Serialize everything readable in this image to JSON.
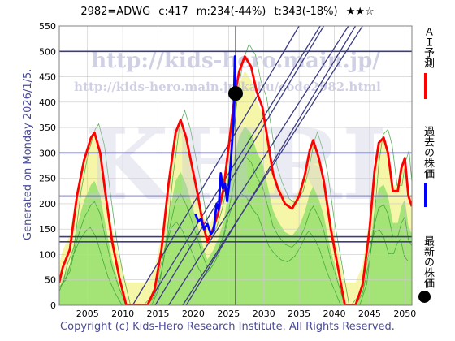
{
  "header": {
    "code": "2982=ADWG",
    "current": "c:417",
    "min": "m:234(-44%)",
    "target": "t:343(-18%)",
    "stars": "★★☆"
  },
  "side_labels": {
    "ai_forecast": "ＡＩ予測",
    "past_price": "過去の株価",
    "latest_price": "最新の株価"
  },
  "generated": "Generated on Monday 2026/1/5.",
  "footer": "Copyright (c) Kids-Hero Research Institute. All Rights Reserved.",
  "watermarks": {
    "url": "http://kids-hero.main.jp/",
    "url_sub": "http://kids-hero.main.jp/kabu/code2982.html",
    "big": "KHRI"
  },
  "colors": {
    "forecast": "#ff0000",
    "past": "#0000ff",
    "latest": "#000000",
    "hline": "#3c3c82",
    "trend": "#3c3c82",
    "area_green": "#88dd66",
    "area_yellow": "#f5f5a0"
  },
  "chart_data": {
    "type": "line",
    "xlim": [
      2001,
      2051
    ],
    "ylim": [
      0,
      550
    ],
    "x_ticks": [
      2005,
      2010,
      2015,
      2020,
      2025,
      2030,
      2035,
      2040,
      2045,
      2050
    ],
    "y_ticks": [
      0,
      50,
      100,
      150,
      200,
      250,
      300,
      350,
      400,
      450,
      500,
      550
    ],
    "grid": true,
    "horizontal_lines": [
      500,
      300,
      215,
      135,
      125
    ],
    "vline_x": 2026,
    "series": [
      {
        "name": "ＡＩ予測",
        "color": "#ff0000",
        "points": [
          [
            2001,
            45
          ],
          [
            2001.5,
            75
          ],
          [
            2002.5,
            110
          ],
          [
            2003.5,
            215
          ],
          [
            2004.5,
            285
          ],
          [
            2005.5,
            330
          ],
          [
            2006,
            340
          ],
          [
            2006.8,
            300
          ],
          [
            2007.5,
            225
          ],
          [
            2008.5,
            125
          ],
          [
            2009.5,
            55
          ],
          [
            2010.5,
            0
          ],
          [
            2012,
            0
          ],
          [
            2013.5,
            0
          ],
          [
            2014.5,
            30
          ],
          [
            2015.5,
            110
          ],
          [
            2016.5,
            240
          ],
          [
            2017.5,
            340
          ],
          [
            2018.2,
            365
          ],
          [
            2019,
            330
          ],
          [
            2019.8,
            275
          ],
          [
            2020.6,
            220
          ],
          [
            2021.3,
            165
          ],
          [
            2022,
            125
          ],
          [
            2022.8,
            150
          ],
          [
            2023.5,
            180
          ],
          [
            2024.3,
            230
          ],
          [
            2025,
            310
          ],
          [
            2025.8,
            405
          ],
          [
            2026.5,
            460
          ],
          [
            2027.3,
            490
          ],
          [
            2028.2,
            470
          ],
          [
            2029,
            420
          ],
          [
            2029.8,
            390
          ],
          [
            2030.5,
            330
          ],
          [
            2031.3,
            260
          ],
          [
            2032,
            230
          ],
          [
            2033,
            200
          ],
          [
            2034,
            190
          ],
          [
            2035,
            215
          ],
          [
            2035.8,
            255
          ],
          [
            2036.5,
            305
          ],
          [
            2037,
            325
          ],
          [
            2037.8,
            290
          ],
          [
            2038.5,
            245
          ],
          [
            2039.5,
            150
          ],
          [
            2040.3,
            90
          ],
          [
            2041.5,
            0
          ],
          [
            2043,
            0
          ],
          [
            2044,
            40
          ],
          [
            2045,
            150
          ],
          [
            2045.7,
            265
          ],
          [
            2046.3,
            320
          ],
          [
            2047,
            330
          ],
          [
            2047.6,
            300
          ],
          [
            2048.3,
            225
          ],
          [
            2049,
            225
          ],
          [
            2049.5,
            270
          ],
          [
            2050,
            290
          ],
          [
            2050.5,
            215
          ],
          [
            2051,
            195
          ]
        ]
      },
      {
        "name": "過去の株価",
        "color": "#0000ff",
        "points": [
          [
            2020.3,
            180
          ],
          [
            2020.7,
            165
          ],
          [
            2021.1,
            170
          ],
          [
            2021.5,
            150
          ],
          [
            2022,
            160
          ],
          [
            2022.5,
            140
          ],
          [
            2022.9,
            148
          ],
          [
            2023.3,
            200
          ],
          [
            2023.6,
            188
          ],
          [
            2023.9,
            260
          ],
          [
            2024.2,
            230
          ],
          [
            2024.5,
            240
          ],
          [
            2024.8,
            205
          ],
          [
            2025.1,
            240
          ],
          [
            2025.4,
            300
          ],
          [
            2025.7,
            360
          ],
          [
            2025.9,
            490
          ],
          [
            2026,
            417
          ]
        ]
      }
    ],
    "latest_point": {
      "x": 2026,
      "y": 417
    },
    "trend_lines": [
      [
        [
          2013.4,
          0
        ],
        [
          2038,
          550
        ]
      ],
      [
        [
          2011.4,
          0
        ],
        [
          2035,
          550
        ]
      ],
      [
        [
          2014.6,
          0
        ],
        [
          2038.5,
          550
        ]
      ],
      [
        [
          2016.5,
          0
        ],
        [
          2042,
          550
        ]
      ],
      [
        [
          2018.5,
          0
        ],
        [
          2044,
          550
        ]
      ],
      [
        [
          2019,
          0
        ],
        [
          2043,
          550
        ]
      ]
    ]
  }
}
